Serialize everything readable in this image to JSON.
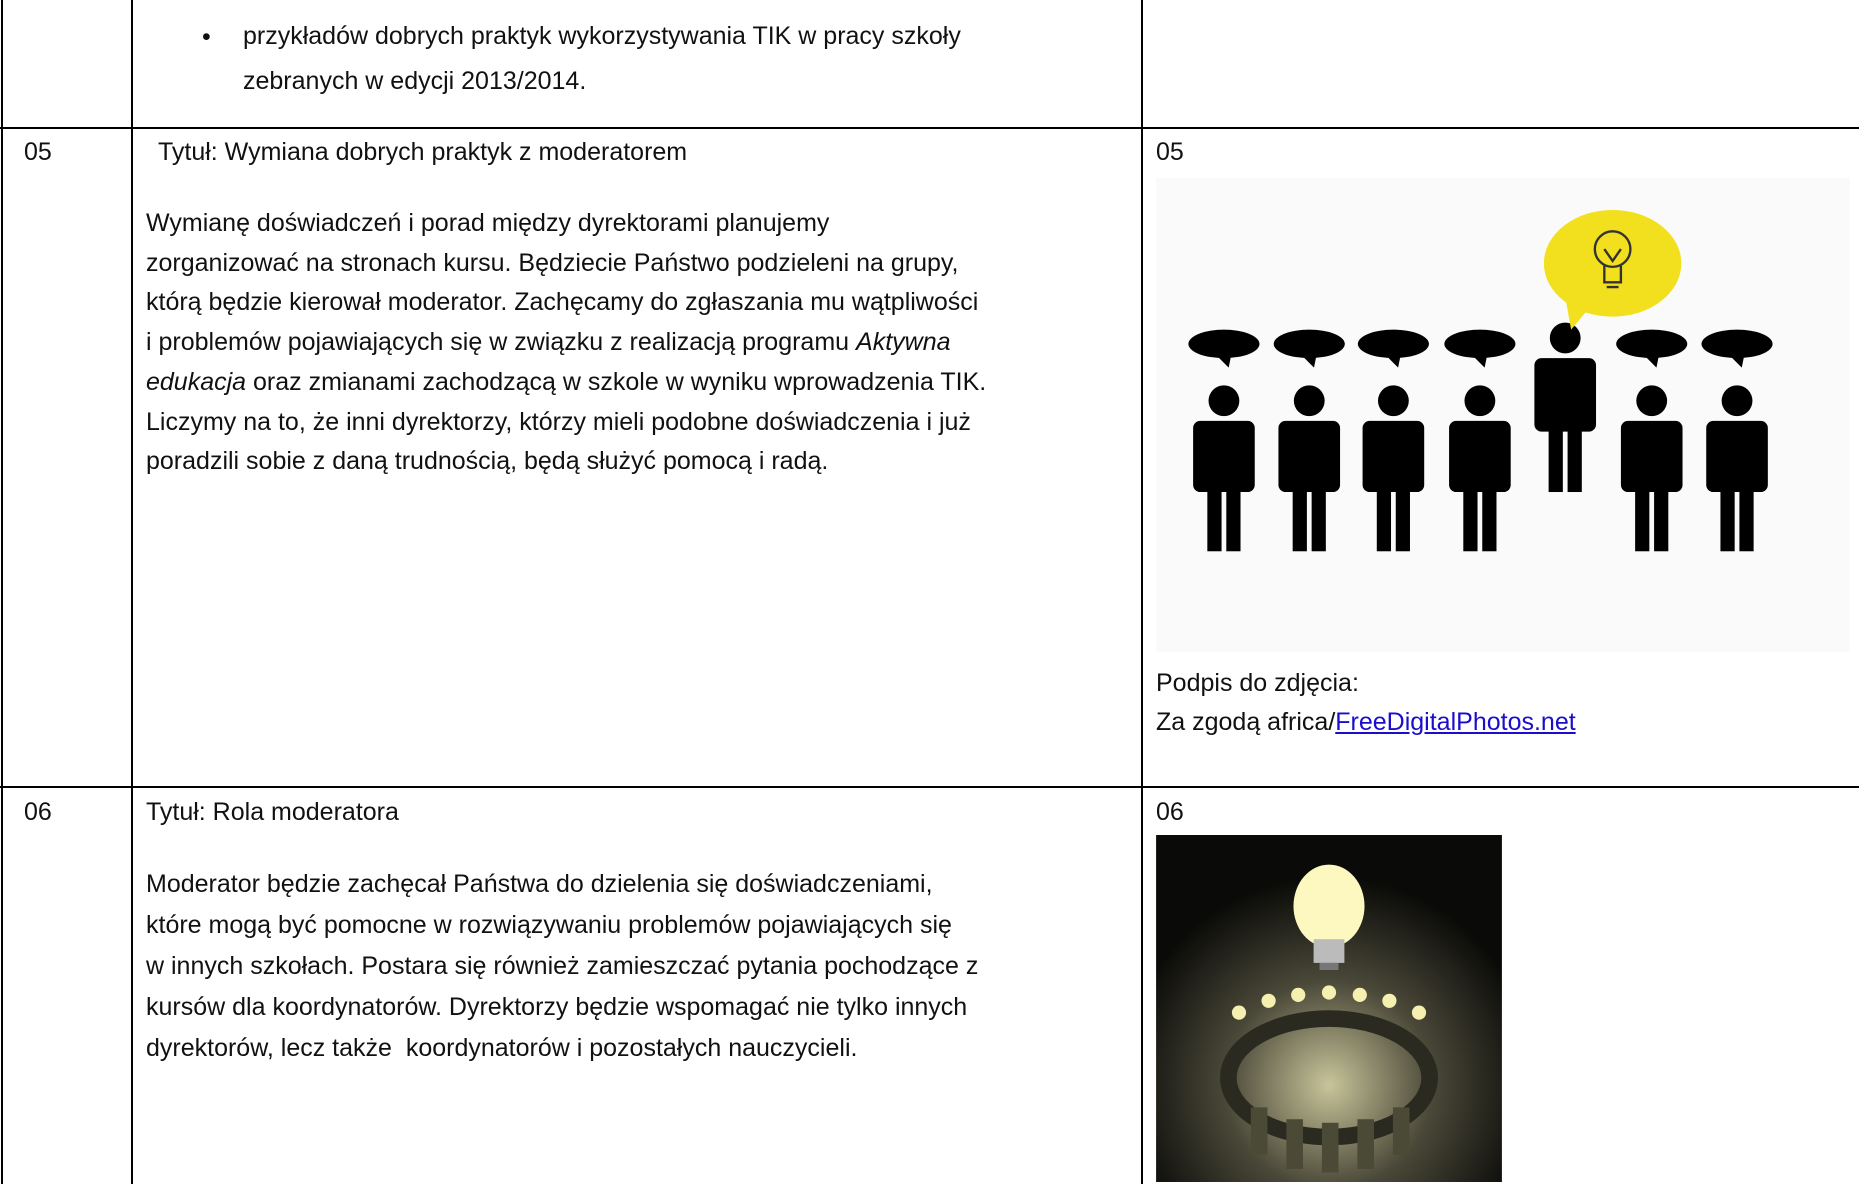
{
  "rows": [
    {
      "bullet_lines": [
        "przykładów dobrych praktyk wykorzystywania TIK w pracy szkoły",
        "zebranych w edycji 2013/2014."
      ]
    },
    {
      "number": "05",
      "title": "Tytuł: Wymiana dobrych praktyk z moderatorem",
      "body": [
        [
          {
            "text": "Wymianę doświadczeń i porad między dyrektorami planujemy"
          }
        ],
        [
          {
            "text": "zorganizować na stronach kursu. Będziecie Państwo podzieleni na grupy,"
          }
        ],
        [
          {
            "text": "którą będzie kierował moderator. Zachęcamy do zgłaszania mu wątpliwości"
          }
        ],
        [
          {
            "text": "i problemów pojawiających się w związku z realizacją programu "
          },
          {
            "text": "Aktywna",
            "italic": true
          }
        ],
        [
          {
            "text": "edukacja",
            "italic": true
          },
          {
            "text": " oraz zmianami zachodzącą w szkole w wyniku wprowadzenia TIK."
          }
        ],
        [
          {
            "text": "Liczymy na to, że inni dyrektorzy, którzy mieli podobne doświadczenia i już"
          }
        ],
        [
          {
            "text": "poradzili sobie z daną trudnością, będą służyć pomocą i radą."
          }
        ]
      ],
      "image_number": "05",
      "caption_label": "Podpis do zdjęcia:",
      "caption_credit": "Za zgodą africa/",
      "caption_link": "FreeDigitalPhotos.net"
    },
    {
      "number": "06",
      "title": "Tytuł: Rola moderatora",
      "body": [
        [
          {
            "text": "Moderator będzie zachęcał Państwa do dzielenia się doświadczeniami,"
          }
        ],
        [
          {
            "text": "które mogą być pomocne w rozwiązywaniu problemów pojawiających się"
          }
        ],
        [
          {
            "text": "w innych szkołach. Postara się również zamieszczać pytania pochodzące z"
          }
        ],
        [
          {
            "text": "kursów dla koordynatorów. Dyrektorzy będzie wspomagać nie tylko innych"
          }
        ],
        [
          {
            "text": "dyrektorów, lecz także  koordynatorów i pozostałych nauczycieli."
          }
        ]
      ],
      "image_number": "06"
    }
  ]
}
